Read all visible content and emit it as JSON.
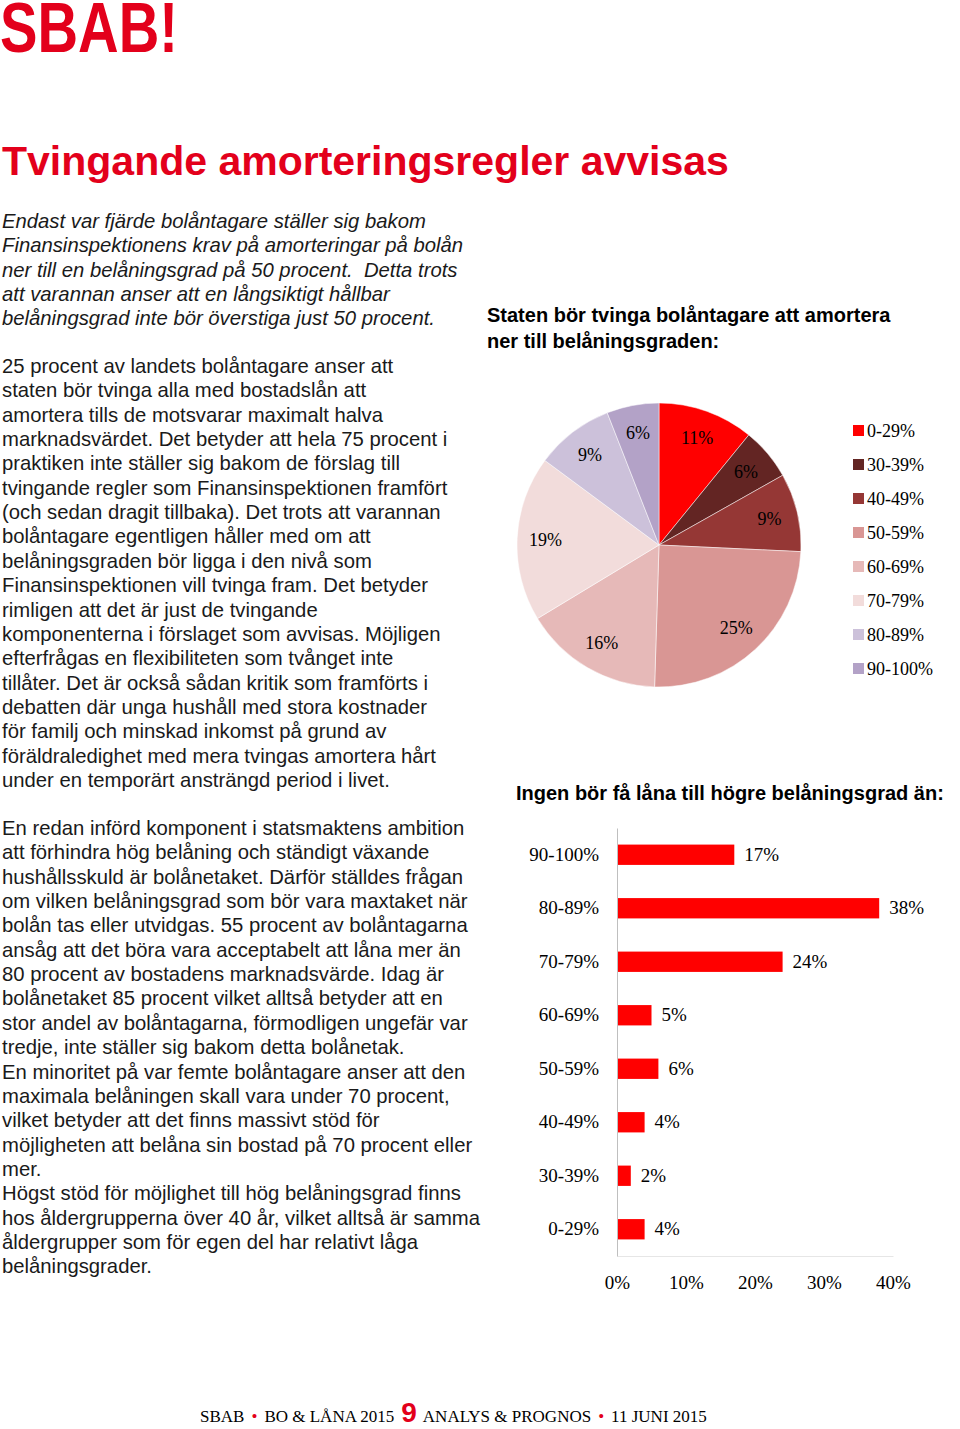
{
  "logo": "SBAB!",
  "title": "Tvingande amorteringsregler avvisas",
  "intro": [
    "Endast var fjärde bolåntagare ställer sig bakom",
    "Finansinspektionens krav på amorteringar på bolån",
    "ner till en belåningsgrad på 50 procent.  Detta trots",
    "att varannan anser att en långsiktigt hållbar",
    "belåningsgrad inte bör överstiga just 50 procent."
  ],
  "body": [
    [
      "25 procent av landets bolåntagare anser att",
      "staten bör tvinga alla med bostadslån att",
      "amortera tills de motsvarar maximalt halva",
      "marknadsvärdet. Det betyder att hela 75 procent i",
      "praktiken inte ställer sig bakom de förslag till",
      "tvingande regler som Finansinspektionen framfört",
      "(och sedan dragit tillbaka). Det trots att varannan",
      "bolåntagare egentligen håller med om att",
      "belåningsgraden bör ligga i den nivå som",
      "Finansinspektionen vill tvinga fram. Det betyder",
      "rimligen att det är just de tvingande",
      "komponenterna i förslaget som avvisas. Möjligen",
      "efterfrågas en flexibiliteten som tvånget inte",
      "tillåter. Det är också sådan kritik som framförts i",
      "debatten där unga hushåll med stora kostnader",
      "för familj och minskad inkomst på grund av",
      "föräldraledighet med mera tvingas amortera hårt",
      "under en temporärt ansträngd period i livet."
    ],
    [
      "En redan införd komponent i statsmaktens ambition",
      "att förhindra hög belåning och ständigt växande",
      "hushållsskuld är bolånetaket. Därför ställdes frågan",
      "om vilken belåningsgrad som bör vara maxtaket när",
      "bolån tas eller utvidgas. 55 procent av bolåntagarna",
      "ansåg att det böra vara acceptabelt att låna mer än",
      "80 procent av bostadens marknadsvärde. Idag är",
      "bolånetaket 85 procent vilket alltså betyder att en",
      "stor andel av bolåntagarna, förmodligen ungefär var",
      "tredje, inte ställer sig bakom detta bolånetak.",
      "En minoritet på var femte bolåntagare anser att den",
      "maximala belåningen skall vara under 70 procent,",
      "vilket betyder att det finns massivt stöd för",
      "möjligheten att belåna sin bostad på 70 procent eller",
      "mer.",
      "Högst stöd för möjlighet till hög belåningsgrad finns",
      "hos åldergrupperna över 40 år, vilket alltså är samma",
      "åldergrupper som för egen del har relativt låga",
      "belåningsgrader."
    ]
  ],
  "chart_data": [
    {
      "type": "pie",
      "title": "Staten bör tvinga bolåntagare att amortera ner till belåningsgraden:",
      "categories": [
        "0-29%",
        "30-39%",
        "40-49%",
        "50-59%",
        "60-69%",
        "70-79%",
        "80-89%",
        "90-100%"
      ],
      "values": [
        11,
        6,
        9,
        25,
        16,
        19,
        9,
        6
      ],
      "value_labels": [
        "11%",
        "6%",
        "9%",
        "25%",
        "16%",
        "19%",
        "9%",
        "6%"
      ],
      "colors": [
        "#ff0000",
        "#632523",
        "#953735",
        "#d99694",
        "#e6b9b8",
        "#f2dcdb",
        "#ccc1da",
        "#b3a2c7"
      ],
      "data_labels": true,
      "legend": "right"
    },
    {
      "type": "bar",
      "title": "Ingen bör få låna till högre belåningsgrad än:",
      "orientation": "horizontal",
      "categories": [
        "90-100%",
        "80-89%",
        "70-79%",
        "60-69%",
        "50-59%",
        "40-49%",
        "30-39%",
        "0-29%"
      ],
      "values": [
        17,
        38,
        24,
        5,
        6,
        4,
        2,
        4
      ],
      "value_labels": [
        "17%",
        "38%",
        "24%",
        "5%",
        "6%",
        "4%",
        "2%",
        "4%"
      ],
      "color": "#ff0000",
      "xlim": [
        0,
        40
      ],
      "xticks": [
        {
          "value": 0,
          "label": "0%"
        },
        {
          "value": 10,
          "label": "10%"
        },
        {
          "value": 20,
          "label": "20%"
        },
        {
          "value": 30,
          "label": "30%"
        },
        {
          "value": 40,
          "label": "40%"
        }
      ],
      "grid": false,
      "data_labels": true
    }
  ],
  "footer": {
    "publisher": "SBAB",
    "report": "BO & LÅNA 2015",
    "page": "9",
    "series": "ANALYS & PROGNOS",
    "date": "11 JUNI 2015",
    "separator": "•"
  }
}
